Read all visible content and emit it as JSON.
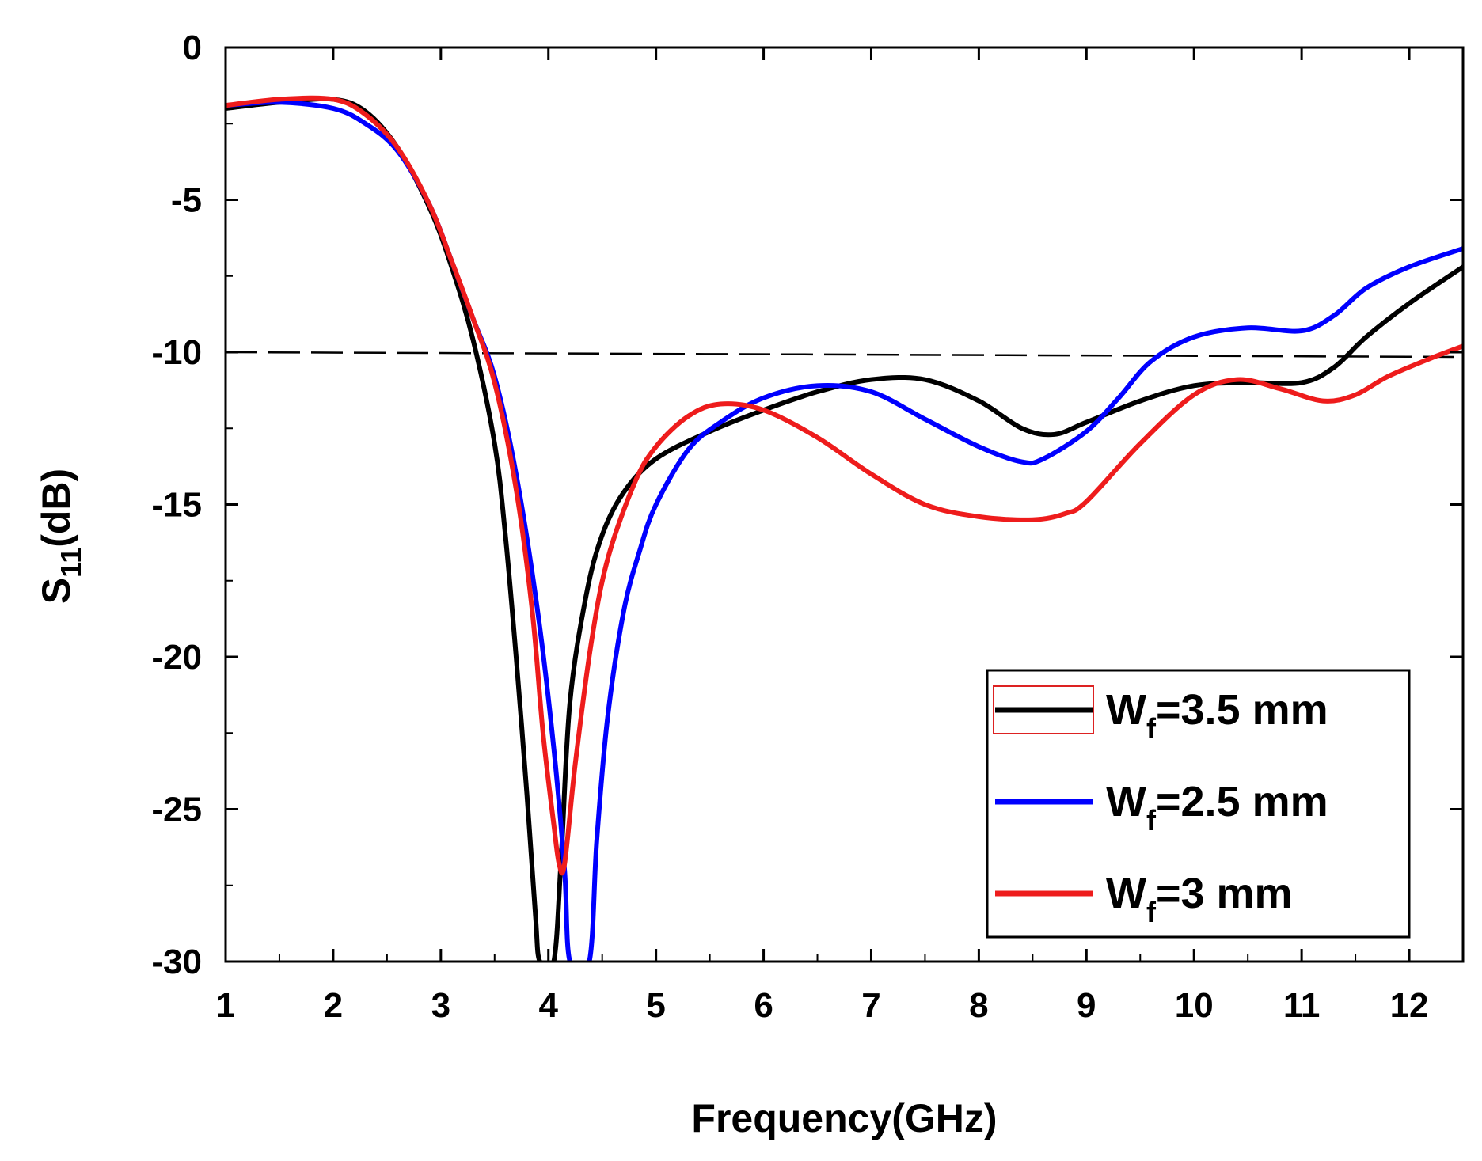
{
  "chart_data": {
    "type": "line",
    "title": "",
    "xlabel": "Frequency(GHz)",
    "ylabel_main": "S",
    "ylabel_sub": "11",
    "ylabel_unit": "(dB)",
    "xlim": [
      1,
      12.5
    ],
    "ylim": [
      -30,
      0
    ],
    "xticks": [
      1,
      2,
      3,
      4,
      5,
      6,
      7,
      8,
      9,
      10,
      11,
      12
    ],
    "xtick_labels": [
      "1",
      "2",
      "3",
      "4",
      "5",
      "6",
      "7",
      "8",
      "9",
      "10",
      "11",
      "12"
    ],
    "yticks": [
      0,
      -5,
      -10,
      -15,
      -20,
      -25,
      -30
    ],
    "ytick_labels": [
      "0",
      "-5",
      "-10",
      "-15",
      "-20",
      "-25",
      "-30"
    ],
    "reference_line": {
      "y": -10,
      "style": "dashed",
      "color": "#000000"
    },
    "legend_position": "bottom-right",
    "series": [
      {
        "name": "Wf=3.5 mm",
        "label_main": "W",
        "label_sub": "f",
        "label_rest": "=3.5 mm",
        "color": "#000000",
        "points": [
          [
            1,
            -2.0
          ],
          [
            1.5,
            -1.8
          ],
          [
            2,
            -1.7
          ],
          [
            2.3,
            -2.1
          ],
          [
            2.6,
            -3.3
          ],
          [
            2.9,
            -5.3
          ],
          [
            3.1,
            -7.2
          ],
          [
            3.3,
            -9.6
          ],
          [
            3.5,
            -13.0
          ],
          [
            3.6,
            -16.0
          ],
          [
            3.7,
            -20.0
          ],
          [
            3.8,
            -24.5
          ],
          [
            3.88,
            -28.5
          ],
          [
            3.92,
            -30.0
          ],
          [
            4.05,
            -30.0
          ],
          [
            4.12,
            -26.5
          ],
          [
            4.2,
            -21.5
          ],
          [
            4.35,
            -18.0
          ],
          [
            4.5,
            -16.0
          ],
          [
            4.7,
            -14.6
          ],
          [
            5,
            -13.5
          ],
          [
            5.5,
            -12.6
          ],
          [
            6,
            -11.9
          ],
          [
            6.5,
            -11.3
          ],
          [
            7,
            -10.9
          ],
          [
            7.5,
            -10.9
          ],
          [
            8,
            -11.6
          ],
          [
            8.4,
            -12.5
          ],
          [
            8.7,
            -12.7
          ],
          [
            9,
            -12.3
          ],
          [
            9.5,
            -11.6
          ],
          [
            10,
            -11.1
          ],
          [
            10.5,
            -11.0
          ],
          [
            11,
            -11.0
          ],
          [
            11.3,
            -10.5
          ],
          [
            11.6,
            -9.5
          ],
          [
            12,
            -8.4
          ],
          [
            12.5,
            -7.2
          ]
        ]
      },
      {
        "name": "Wf=2.5 mm",
        "label_main": "W",
        "label_sub": "f",
        "label_rest": "=2.5 mm",
        "color": "#0000ff",
        "points": [
          [
            1,
            -1.9
          ],
          [
            1.5,
            -1.8
          ],
          [
            2,
            -2.0
          ],
          [
            2.3,
            -2.5
          ],
          [
            2.6,
            -3.4
          ],
          [
            2.9,
            -5.2
          ],
          [
            3.1,
            -7.0
          ],
          [
            3.3,
            -8.9
          ],
          [
            3.5,
            -10.8
          ],
          [
            3.7,
            -14.0
          ],
          [
            3.9,
            -18.5
          ],
          [
            4.05,
            -23.0
          ],
          [
            4.15,
            -27.0
          ],
          [
            4.2,
            -30.0
          ],
          [
            4.38,
            -30.0
          ],
          [
            4.45,
            -26.0
          ],
          [
            4.55,
            -22.0
          ],
          [
            4.7,
            -18.5
          ],
          [
            4.85,
            -16.5
          ],
          [
            5,
            -15.0
          ],
          [
            5.3,
            -13.2
          ],
          [
            5.6,
            -12.3
          ],
          [
            6,
            -11.5
          ],
          [
            6.5,
            -11.1
          ],
          [
            7,
            -11.3
          ],
          [
            7.5,
            -12.2
          ],
          [
            8,
            -13.1
          ],
          [
            8.4,
            -13.6
          ],
          [
            8.6,
            -13.5
          ],
          [
            9,
            -12.6
          ],
          [
            9.3,
            -11.5
          ],
          [
            9.6,
            -10.3
          ],
          [
            10,
            -9.5
          ],
          [
            10.5,
            -9.2
          ],
          [
            11,
            -9.3
          ],
          [
            11.3,
            -8.8
          ],
          [
            11.6,
            -7.9
          ],
          [
            12,
            -7.2
          ],
          [
            12.5,
            -6.6
          ]
        ]
      },
      {
        "name": "Wf=3 mm",
        "label_main": "W",
        "label_sub": "f",
        "label_rest": "=3 mm",
        "color": "#ee1c1c",
        "points": [
          [
            1,
            -1.9
          ],
          [
            1.5,
            -1.7
          ],
          [
            2,
            -1.7
          ],
          [
            2.3,
            -2.2
          ],
          [
            2.6,
            -3.3
          ],
          [
            2.9,
            -5.2
          ],
          [
            3.1,
            -7.0
          ],
          [
            3.3,
            -8.9
          ],
          [
            3.5,
            -11.0
          ],
          [
            3.7,
            -14.5
          ],
          [
            3.85,
            -18.5
          ],
          [
            3.95,
            -22.5
          ],
          [
            4.05,
            -25.5
          ],
          [
            4.1,
            -26.8
          ],
          [
            4.15,
            -26.8
          ],
          [
            4.25,
            -23.5
          ],
          [
            4.4,
            -19.5
          ],
          [
            4.55,
            -16.8
          ],
          [
            4.8,
            -14.3
          ],
          [
            5,
            -13.1
          ],
          [
            5.3,
            -12.1
          ],
          [
            5.6,
            -11.7
          ],
          [
            6,
            -11.9
          ],
          [
            6.5,
            -12.8
          ],
          [
            7,
            -14.0
          ],
          [
            7.5,
            -15.0
          ],
          [
            8,
            -15.4
          ],
          [
            8.5,
            -15.5
          ],
          [
            8.8,
            -15.3
          ],
          [
            9,
            -14.9
          ],
          [
            9.5,
            -13.0
          ],
          [
            10,
            -11.4
          ],
          [
            10.4,
            -10.9
          ],
          [
            10.8,
            -11.2
          ],
          [
            11.2,
            -11.6
          ],
          [
            11.5,
            -11.4
          ],
          [
            11.8,
            -10.8
          ],
          [
            12.2,
            -10.2
          ],
          [
            12.5,
            -9.8
          ]
        ]
      }
    ]
  }
}
